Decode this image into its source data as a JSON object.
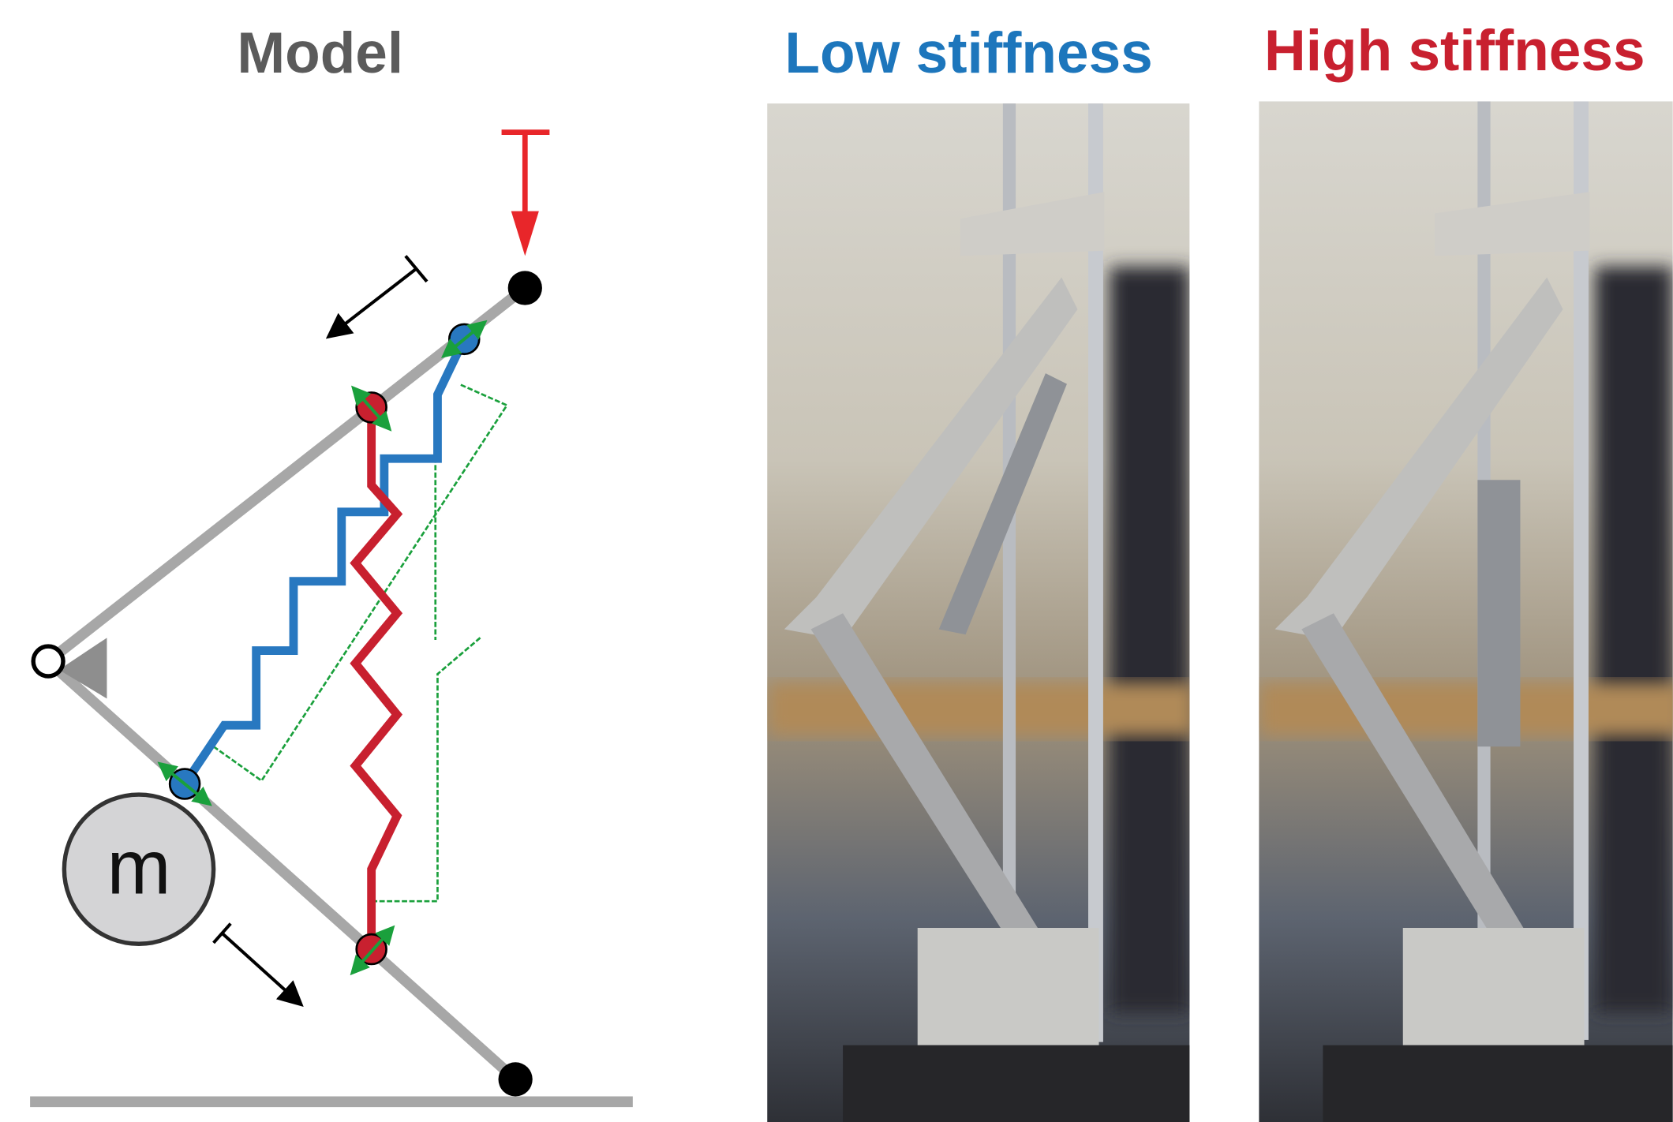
{
  "headings": {
    "model": "Model",
    "low_stiffness": "Low stiffness",
    "high_stiffness": "High stiffness"
  },
  "model": {
    "mass_label": "m"
  }
}
